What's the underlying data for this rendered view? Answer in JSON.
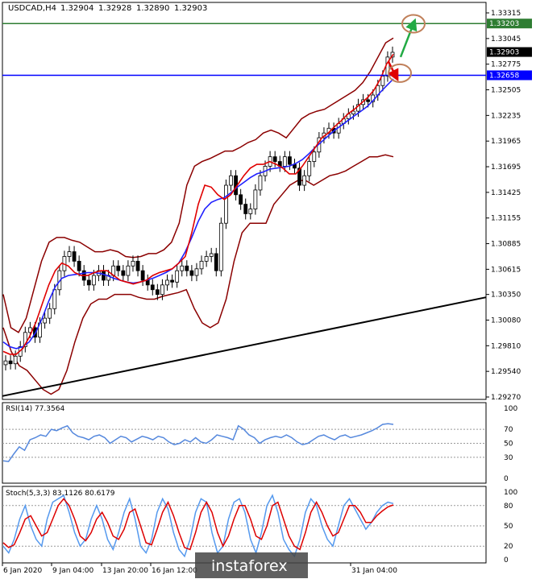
{
  "chart_data": {
    "type": "candlestick",
    "main": {
      "title": "USDCAD,H4",
      "ohlc": [
        "1.32904",
        "1.32928",
        "1.32890",
        "1.32903"
      ],
      "ylim": [
        1.2927,
        1.33315
      ],
      "y_ticks": [
        "1.33315",
        "1.33045",
        "1.32775",
        "1.32505",
        "1.32235",
        "1.31965",
        "1.31695",
        "1.31425",
        "1.31155",
        "1.30885",
        "1.30615",
        "1.30350",
        "1.30080",
        "1.29810",
        "1.29540",
        "1.29270"
      ],
      "horizontal_levels": [
        {
          "label": "1.33203",
          "value": 1.33203,
          "color": "#2e7d32"
        },
        {
          "label": "1.32658",
          "value": 1.32658,
          "color": "#0000ff"
        }
      ],
      "current_price": {
        "label": "1.32903",
        "value": 1.32903
      },
      "trendline": {
        "from": 1.2928,
        "to": 1.3032,
        "color": "#000000"
      },
      "series": [
        {
          "name": "close",
          "color": "#000000",
          "values": [
            1.2965,
            1.2962,
            1.297,
            1.298,
            1.2995,
            1.3,
            1.299,
            1.3005,
            1.301,
            1.302,
            1.304,
            1.306,
            1.3075,
            1.308,
            1.307,
            1.306,
            1.305,
            1.3045,
            1.3055,
            1.306,
            1.305,
            1.3055,
            1.3065,
            1.306,
            1.3055,
            1.3065,
            1.307,
            1.306,
            1.305,
            1.3045,
            1.304,
            1.3035,
            1.3045,
            1.305,
            1.3048,
            1.306,
            1.3065,
            1.306,
            1.3055,
            1.3062,
            1.307,
            1.3075,
            1.3078,
            1.306,
            1.311,
            1.315,
            1.316,
            1.314,
            1.313,
            1.312,
            1.3125,
            1.3145,
            1.316,
            1.317,
            1.318,
            1.3175,
            1.317,
            1.318,
            1.3172,
            1.3168,
            1.315,
            1.316,
            1.3175,
            1.3185,
            1.32,
            1.3205,
            1.321,
            1.3205,
            1.3215,
            1.322,
            1.3225,
            1.3228,
            1.3235,
            1.324,
            1.3238,
            1.3245,
            1.3255,
            1.3265,
            1.3285,
            1.329
          ]
        },
        {
          "name": "ma_fast",
          "color": "#e00000",
          "values": [
            1.2975,
            1.2972,
            1.2972,
            1.2978,
            1.299,
            1.3005,
            1.3025,
            1.3045,
            1.306,
            1.3068,
            1.3065,
            1.3058,
            1.3055,
            1.3055,
            1.3058,
            1.306,
            1.306,
            1.3055,
            1.305,
            1.3048,
            1.3046,
            1.3048,
            1.305,
            1.3055,
            1.3058,
            1.306,
            1.3062,
            1.3068,
            1.3075,
            1.31,
            1.313,
            1.315,
            1.3148,
            1.314,
            1.3135,
            1.314,
            1.315,
            1.316,
            1.3168,
            1.3172,
            1.3172,
            1.3175,
            1.3172,
            1.3168,
            1.3162,
            1.3162,
            1.317,
            1.318,
            1.319,
            1.32,
            1.3205,
            1.3212,
            1.3218,
            1.3225,
            1.323,
            1.3236,
            1.3242,
            1.325,
            1.3262,
            1.3278,
            1.3288
          ]
        },
        {
          "name": "ma_slow",
          "color": "#2020ff",
          "values": [
            1.2985,
            1.298,
            1.2978,
            1.298,
            1.2985,
            1.2995,
            1.301,
            1.3028,
            1.3043,
            1.3052,
            1.3055,
            1.3056,
            1.3057,
            1.3058,
            1.3058,
            1.3057,
            1.3055,
            1.3052,
            1.305,
            1.3048,
            1.3047,
            1.3048,
            1.305,
            1.3052,
            1.3055,
            1.3058,
            1.3062,
            1.3068,
            1.308,
            1.3095,
            1.3112,
            1.3125,
            1.3132,
            1.3135,
            1.3137,
            1.3142,
            1.3148,
            1.3153,
            1.3158,
            1.3162,
            1.3164,
            1.3167,
            1.3168,
            1.3169,
            1.317,
            1.3173,
            1.3177,
            1.3183,
            1.319,
            1.3196,
            1.3202,
            1.3208,
            1.3213,
            1.3218,
            1.3223,
            1.3228,
            1.3233,
            1.324,
            1.3248,
            1.3255,
            1.3262
          ]
        },
        {
          "name": "bb_upper",
          "color": "#8b0000",
          "values": [
            1.3035,
            1.3,
            1.2995,
            1.301,
            1.304,
            1.307,
            1.309,
            1.3095,
            1.3095,
            1.3092,
            1.309,
            1.3085,
            1.308,
            1.308,
            1.3082,
            1.308,
            1.3075,
            1.3074,
            1.3075,
            1.3078,
            1.3078,
            1.3082,
            1.309,
            1.311,
            1.315,
            1.317,
            1.3175,
            1.3178,
            1.3182,
            1.3186,
            1.3186,
            1.319,
            1.3195,
            1.3198,
            1.3205,
            1.3208,
            1.3205,
            1.32,
            1.321,
            1.322,
            1.3225,
            1.3228,
            1.323,
            1.3235,
            1.324,
            1.3245,
            1.325,
            1.3258,
            1.327,
            1.3285,
            1.33,
            1.3305
          ]
        },
        {
          "name": "bb_lower",
          "color": "#8b0000",
          "values": [
            1.3,
            1.2975,
            1.296,
            1.2955,
            1.2945,
            1.2935,
            1.293,
            1.2935,
            1.2955,
            1.2985,
            1.301,
            1.3025,
            1.303,
            1.303,
            1.3035,
            1.3035,
            1.3035,
            1.3032,
            1.303,
            1.303,
            1.3033,
            1.3035,
            1.3037,
            1.304,
            1.302,
            1.3005,
            1.3,
            1.3005,
            1.303,
            1.307,
            1.31,
            1.311,
            1.311,
            1.311,
            1.313,
            1.314,
            1.315,
            1.3155,
            1.3155,
            1.315,
            1.3155,
            1.316,
            1.3162,
            1.3165,
            1.317,
            1.3175,
            1.318,
            1.318,
            1.3182,
            1.318
          ]
        }
      ],
      "forecast_arrows": [
        {
          "color": "#22aa44",
          "from": 1.3285,
          "to": 1.332
        },
        {
          "color": "#e00000",
          "from": 1.328,
          "to": 1.3265
        }
      ]
    },
    "rsi": {
      "title": "RSI(14) 77.3564",
      "ylim": [
        0,
        100
      ],
      "levels": [
        "70",
        "50",
        "30"
      ],
      "y_ticks": [
        "100",
        "70",
        "50",
        "30",
        "0"
      ],
      "values": [
        25,
        24,
        35,
        45,
        40,
        55,
        58,
        62,
        60,
        70,
        68,
        72,
        75,
        65,
        60,
        58,
        55,
        60,
        62,
        58,
        50,
        55,
        60,
        58,
        52,
        56,
        60,
        58,
        55,
        60,
        58,
        52,
        48,
        50,
        55,
        52,
        58,
        52,
        50,
        55,
        62,
        60,
        58,
        55,
        75,
        70,
        62,
        58,
        50,
        55,
        58,
        60,
        58,
        62,
        58,
        52,
        48,
        50,
        55,
        60,
        62,
        58,
        55,
        60,
        62,
        58,
        60,
        62,
        65,
        68,
        72,
        77,
        78,
        77
      ]
    },
    "stoch": {
      "title": "Stoch(5,3,3) 83.1126 80.6179",
      "ylim": [
        0,
        100
      ],
      "levels": [
        "80",
        "50",
        "20"
      ],
      "y_ticks": [
        "100",
        "80",
        "50",
        "20",
        "0"
      ],
      "main": [
        20,
        10,
        30,
        60,
        80,
        50,
        30,
        20,
        60,
        85,
        90,
        95,
        70,
        40,
        20,
        30,
        60,
        80,
        60,
        30,
        15,
        40,
        70,
        90,
        60,
        20,
        10,
        30,
        70,
        90,
        75,
        40,
        15,
        5,
        30,
        70,
        90,
        85,
        40,
        10,
        20,
        60,
        85,
        90,
        70,
        30,
        10,
        40,
        80,
        95,
        70,
        30,
        15,
        5,
        30,
        70,
        90,
        80,
        50,
        30,
        20,
        50,
        80,
        90,
        75,
        60,
        45,
        55,
        70,
        80,
        85,
        83
      ],
      "signal": [
        25,
        18,
        22,
        40,
        60,
        65,
        50,
        35,
        40,
        60,
        80,
        90,
        80,
        60,
        35,
        28,
        40,
        60,
        70,
        55,
        35,
        30,
        45,
        70,
        75,
        50,
        25,
        22,
        45,
        70,
        85,
        65,
        40,
        18,
        15,
        40,
        70,
        85,
        70,
        40,
        20,
        35,
        60,
        80,
        80,
        60,
        35,
        30,
        50,
        80,
        85,
        60,
        35,
        20,
        15,
        40,
        70,
        85,
        70,
        50,
        35,
        40,
        60,
        80,
        80,
        70,
        55,
        55,
        65,
        72,
        78,
        81
      ]
    },
    "x_ticks": [
      "6 Jan 2020",
      "9 Jan 04:00",
      "13 Jan 20:00",
      "16 Jan 12:00",
      "31 Jan 04:00"
    ],
    "watermark": "instaforex"
  }
}
